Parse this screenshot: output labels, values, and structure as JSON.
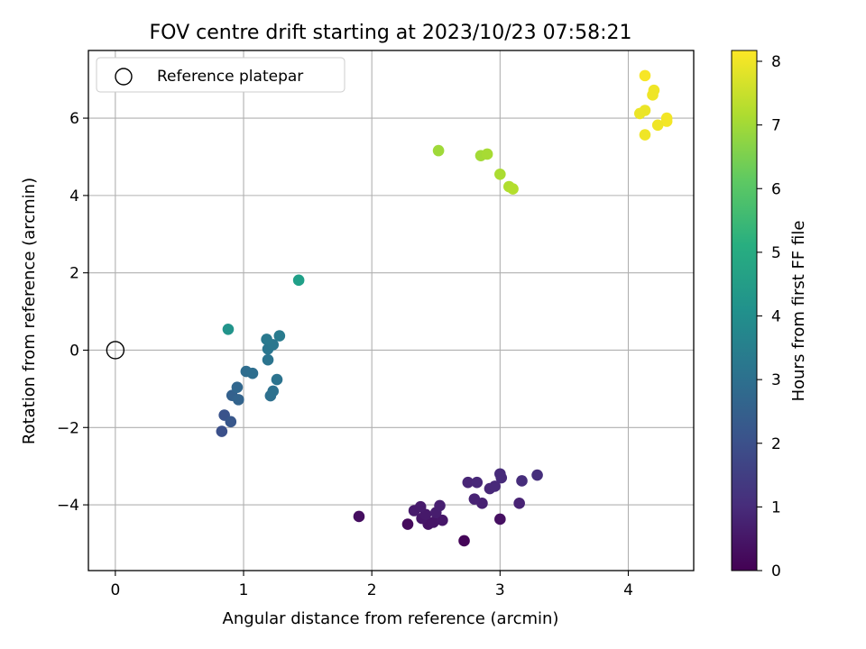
{
  "chart_data": {
    "type": "scatter",
    "title": "FOV centre drift starting at 2023/10/23 07:58:21",
    "xlabel": "Angular distance from reference (arcmin)",
    "ylabel": "Rotation from reference (arcmin)",
    "xlim": [
      -0.21,
      4.51
    ],
    "ylim": [
      -5.7,
      7.75
    ],
    "xticks": [
      0,
      1,
      2,
      3,
      4
    ],
    "yticks": [
      -4,
      -2,
      0,
      2,
      4,
      6
    ],
    "xtick_labels": [
      "0",
      "1",
      "2",
      "3",
      "4"
    ],
    "ytick_labels": [
      "−4",
      "−2",
      "0",
      "2",
      "4",
      "6"
    ],
    "grid": true,
    "legend": {
      "location": "upper-left",
      "entries": [
        "Reference platepar"
      ]
    },
    "reference_point": {
      "x": 0,
      "y": 0,
      "marker": "open-circle"
    },
    "colorbar": {
      "label": "Hours from first FF file",
      "range": [
        0,
        8.17
      ],
      "ticks": [
        0,
        1,
        2,
        3,
        4,
        5,
        6,
        7,
        8
      ],
      "tick_labels": [
        "0",
        "1",
        "2",
        "3",
        "4",
        "5",
        "6",
        "7",
        "8"
      ],
      "colormap": "viridis"
    },
    "points": [
      {
        "x": 2.72,
        "y": -4.93,
        "c": 0.1
      },
      {
        "x": 2.28,
        "y": -4.5,
        "c": 0.2
      },
      {
        "x": 1.9,
        "y": -4.3,
        "c": 0.3
      },
      {
        "x": 3.0,
        "y": -4.37,
        "c": 0.35
      },
      {
        "x": 2.44,
        "y": -4.5,
        "c": 0.4
      },
      {
        "x": 2.48,
        "y": -4.45,
        "c": 0.45
      },
      {
        "x": 2.55,
        "y": -4.4,
        "c": 0.5
      },
      {
        "x": 2.39,
        "y": -4.35,
        "c": 0.5
      },
      {
        "x": 2.42,
        "y": -4.25,
        "c": 0.55
      },
      {
        "x": 2.33,
        "y": -4.15,
        "c": 0.6
      },
      {
        "x": 2.38,
        "y": -4.05,
        "c": 0.6
      },
      {
        "x": 2.5,
        "y": -4.2,
        "c": 0.65
      },
      {
        "x": 2.53,
        "y": -4.02,
        "c": 0.7
      },
      {
        "x": 2.86,
        "y": -3.96,
        "c": 0.75
      },
      {
        "x": 2.8,
        "y": -3.85,
        "c": 0.8
      },
      {
        "x": 3.15,
        "y": -3.96,
        "c": 0.8
      },
      {
        "x": 2.75,
        "y": -3.42,
        "c": 0.85
      },
      {
        "x": 2.82,
        "y": -3.42,
        "c": 0.9
      },
      {
        "x": 2.92,
        "y": -3.58,
        "c": 0.9
      },
      {
        "x": 2.96,
        "y": -3.52,
        "c": 0.95
      },
      {
        "x": 3.01,
        "y": -3.3,
        "c": 1.0
      },
      {
        "x": 3.0,
        "y": -3.2,
        "c": 1.0
      },
      {
        "x": 3.17,
        "y": -3.38,
        "c": 1.05
      },
      {
        "x": 3.29,
        "y": -3.23,
        "c": 1.1
      },
      {
        "x": 0.83,
        "y": -2.1,
        "c": 2.0
      },
      {
        "x": 0.85,
        "y": -1.68,
        "c": 2.1
      },
      {
        "x": 0.9,
        "y": -1.85,
        "c": 2.2
      },
      {
        "x": 0.91,
        "y": -1.17,
        "c": 2.5
      },
      {
        "x": 0.96,
        "y": -1.28,
        "c": 2.6
      },
      {
        "x": 0.95,
        "y": -0.96,
        "c": 2.7
      },
      {
        "x": 1.02,
        "y": -0.55,
        "c": 2.9
      },
      {
        "x": 1.07,
        "y": -0.6,
        "c": 2.95
      },
      {
        "x": 1.21,
        "y": -1.18,
        "c": 3.0
      },
      {
        "x": 1.23,
        "y": -1.06,
        "c": 3.05
      },
      {
        "x": 1.26,
        "y": -0.76,
        "c": 3.1
      },
      {
        "x": 1.19,
        "y": -0.25,
        "c": 3.15
      },
      {
        "x": 1.19,
        "y": 0.03,
        "c": 3.2
      },
      {
        "x": 1.23,
        "y": 0.14,
        "c": 3.25
      },
      {
        "x": 1.18,
        "y": 0.28,
        "c": 3.3
      },
      {
        "x": 1.28,
        "y": 0.37,
        "c": 3.4
      },
      {
        "x": 0.88,
        "y": 0.54,
        "c": 4.2
      },
      {
        "x": 1.43,
        "y": 1.81,
        "c": 4.6
      },
      {
        "x": 2.52,
        "y": 5.16,
        "c": 7.0
      },
      {
        "x": 2.85,
        "y": 5.03,
        "c": 7.05
      },
      {
        "x": 2.9,
        "y": 5.07,
        "c": 7.1
      },
      {
        "x": 3.0,
        "y": 4.55,
        "c": 7.15
      },
      {
        "x": 3.07,
        "y": 4.23,
        "c": 7.2
      },
      {
        "x": 3.1,
        "y": 4.17,
        "c": 7.25
      },
      {
        "x": 4.13,
        "y": 7.1,
        "c": 8.1
      },
      {
        "x": 4.2,
        "y": 6.72,
        "c": 8.0
      },
      {
        "x": 4.19,
        "y": 6.6,
        "c": 8.0
      },
      {
        "x": 4.13,
        "y": 6.2,
        "c": 7.95
      },
      {
        "x": 4.09,
        "y": 6.12,
        "c": 7.95
      },
      {
        "x": 4.3,
        "y": 6.0,
        "c": 8.05
      },
      {
        "x": 4.3,
        "y": 5.92,
        "c": 8.05
      },
      {
        "x": 4.23,
        "y": 5.82,
        "c": 8.0
      },
      {
        "x": 4.13,
        "y": 5.57,
        "c": 8.0
      }
    ]
  }
}
